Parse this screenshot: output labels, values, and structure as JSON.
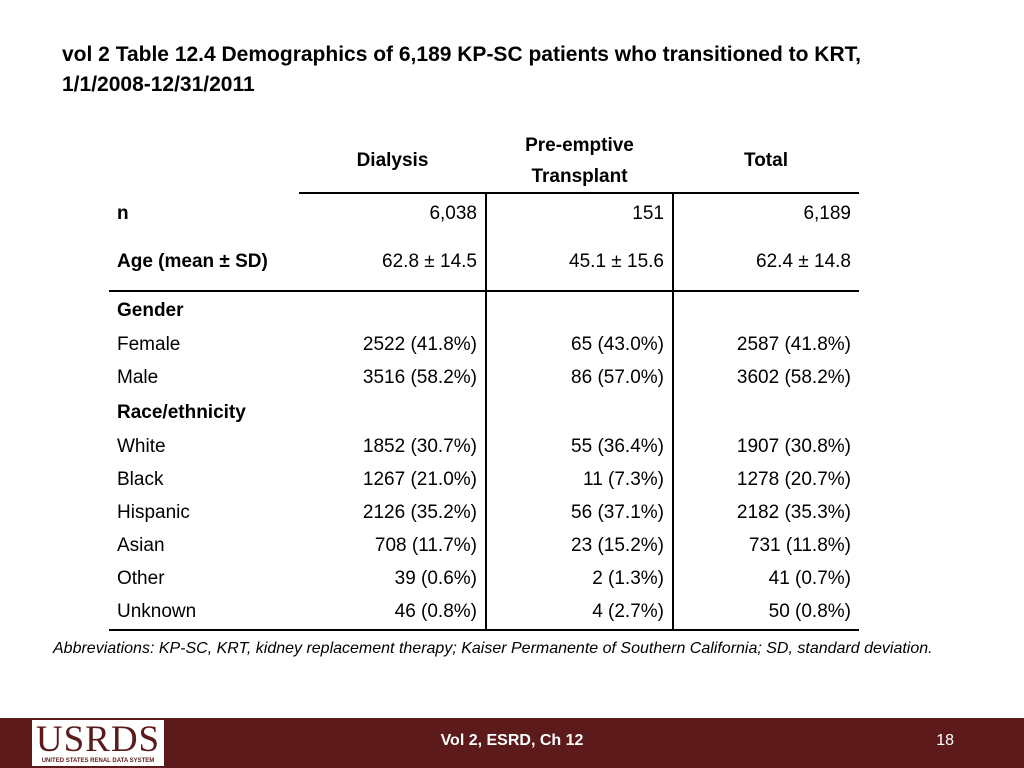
{
  "title": {
    "line1": "vol 2 Table 12.4  Demographics of 6,189 KP-SC patients who transitioned to KRT,",
    "line2": "1/1/2008-12/31/2011"
  },
  "table": {
    "headers": {
      "dialysis": "Dialysis",
      "preemptive_1": "Pre-emptive",
      "preemptive_2": "Transplant",
      "total": "Total"
    },
    "n": {
      "label": "n",
      "dialysis": "6,038",
      "preemptive": "151",
      "total": "6,189"
    },
    "age": {
      "label": "Age (mean ± SD)",
      "dialysis": "62.8 ± 14.5",
      "preemptive": "45.1  ± 15.6",
      "total": "62.4 ± 14.8"
    },
    "gender": {
      "label": "Gender",
      "rows": [
        {
          "label": "Female",
          "dialysis": "2522 (41.8%)",
          "preemptive": "65 (43.0%)",
          "total": "2587 (41.8%)"
        },
        {
          "label": "Male",
          "dialysis": "3516 (58.2%)",
          "preemptive": "86 (57.0%)",
          "total": "3602 (58.2%)"
        }
      ]
    },
    "race": {
      "label": "Race/ethnicity",
      "rows": [
        {
          "label": "White",
          "dialysis": "1852 (30.7%)",
          "preemptive": "55 (36.4%)",
          "total": "1907 (30.8%)"
        },
        {
          "label": "Black",
          "dialysis": "1267 (21.0%)",
          "preemptive": "11 (7.3%)",
          "total": "1278 (20.7%)"
        },
        {
          "label": "Hispanic",
          "dialysis": "2126 (35.2%)",
          "preemptive": "56 (37.1%)",
          "total": "2182 (35.3%)"
        },
        {
          "label": "Asian",
          "dialysis": "708 (11.7%)",
          "preemptive": "23 (15.2%)",
          "total": "731 (11.8%)"
        },
        {
          "label": "Other",
          "dialysis": "39 (0.6%)",
          "preemptive": "2 (1.3%)",
          "total": "41 (0.7%)"
        },
        {
          "label": "Unknown",
          "dialysis": "46 (0.8%)",
          "preemptive": "4 (2.7%)",
          "total": "50 (0.8%)"
        }
      ]
    }
  },
  "abbreviations": "Abbreviations: KP-SC, KRT, kidney replacement therapy; Kaiser Permanente of Southern California; SD, standard deviation.",
  "footer": {
    "logo_text": "USRDS",
    "logo_subtext": "UNITED STATES RENAL DATA SYSTEM",
    "center": "Vol 2, ESRD, Ch 12",
    "page": "18",
    "bg_color": "#5c1a1a"
  }
}
